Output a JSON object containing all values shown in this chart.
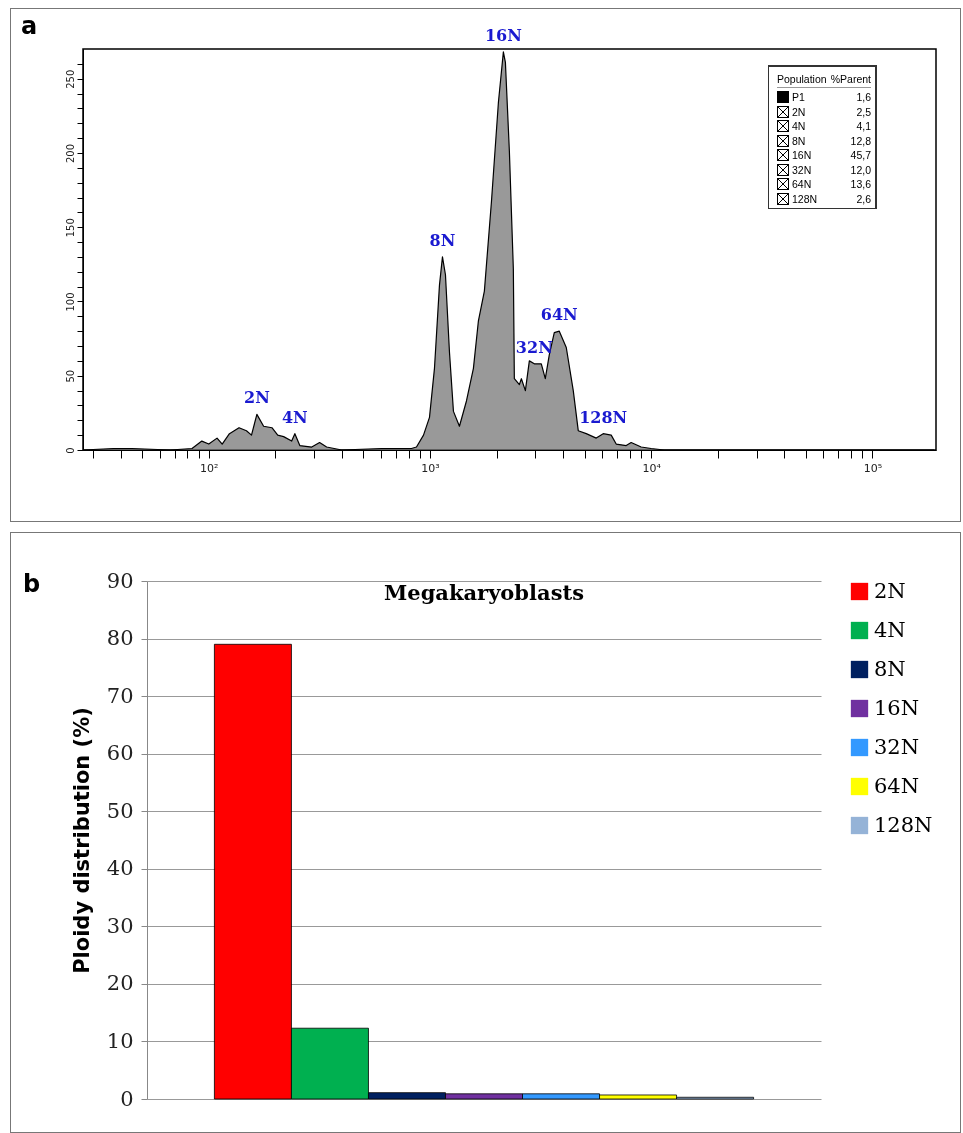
{
  "chart_data": [
    {
      "type": "area",
      "annotations": [
        "a",
        "Population",
        "%Parent",
        "P1",
        "1,6",
        "2N",
        "2,5",
        "4N",
        "4,1",
        "8N",
        "12,8",
        "16N",
        "45,7",
        "32N",
        "12,0",
        "64N",
        "13,6",
        "128N",
        "2,6",
        {
          "text": "2N",
          "x": 165,
          "y": 24
        },
        {
          "text": "4N",
          "x": 245,
          "y": 11
        },
        {
          "text": "8N",
          "x": 1139,
          "y": 130
        },
        {
          "text": "16N",
          "x": 2147,
          "y": 268
        },
        {
          "text": "32N",
          "x": 2963,
          "y": 58
        },
        {
          "text": "64N",
          "x": 3843,
          "y": 80
        },
        {
          "text": "128N",
          "x": 6071,
          "y": 11
        }
      ],
      "log": "x",
      "xlim": [
        27,
        194000
      ],
      "ylim": [
        0,
        270
      ],
      "xticks": [
        {
          "value": 30,
          "label": null
        },
        {
          "value": 40,
          "label": null
        },
        {
          "value": 50,
          "label": null
        },
        {
          "value": 60,
          "label": null
        },
        {
          "value": 70,
          "label": null
        },
        {
          "value": 80,
          "label": null
        },
        {
          "value": 90,
          "label": null
        },
        {
          "value": 100,
          "label": "10²"
        },
        {
          "value": 200,
          "label": null
        },
        {
          "value": 300,
          "label": null
        },
        {
          "value": 400,
          "label": null
        },
        {
          "value": 500,
          "label": null
        },
        {
          "value": 600,
          "label": null
        },
        {
          "value": 700,
          "label": null
        },
        {
          "value": 800,
          "label": null
        },
        {
          "value": 900,
          "label": null
        },
        {
          "value": 1000,
          "label": "10³"
        },
        {
          "value": 2000,
          "label": null
        },
        {
          "value": 3000,
          "label": null
        },
        {
          "value": 4000,
          "label": null
        },
        {
          "value": 5000,
          "label": null
        },
        {
          "value": 6000,
          "label": null
        },
        {
          "value": 7000,
          "label": null
        },
        {
          "value": 8000,
          "label": null
        },
        {
          "value": 9000,
          "label": null
        },
        {
          "value": 10000,
          "label": "10⁴"
        },
        {
          "value": 20000,
          "label": null
        },
        {
          "value": 30000,
          "label": null
        },
        {
          "value": 40000,
          "label": null
        },
        {
          "value": 50000,
          "label": null
        },
        {
          "value": 60000,
          "label": null
        },
        {
          "value": 70000,
          "label": null
        },
        {
          "value": 80000,
          "label": null
        },
        {
          "value": 90000,
          "label": null
        },
        {
          "value": 100000,
          "label": "10⁵"
        }
      ],
      "yticks": [
        0,
        {
          "value": 10,
          "label": null
        },
        {
          "value": 20,
          "label": null
        },
        {
          "value": 30,
          "label": null
        },
        {
          "value": 40,
          "label": null
        },
        50,
        {
          "value": 60,
          "label": null
        },
        {
          "value": 70,
          "label": null
        },
        {
          "value": 80,
          "label": null
        },
        {
          "value": 90,
          "label": null
        },
        100,
        {
          "value": 110,
          "label": null
        },
        {
          "value": 120,
          "label": null
        },
        {
          "value": 130,
          "label": null
        },
        {
          "value": 140,
          "label": null
        },
        150,
        {
          "value": 160,
          "label": null
        },
        {
          "value": 170,
          "label": null
        },
        {
          "value": 180,
          "label": null
        },
        {
          "value": 190,
          "label": null
        },
        200,
        {
          "value": 210,
          "label": null
        },
        {
          "value": 220,
          "label": null
        },
        {
          "value": 230,
          "label": null
        },
        {
          "value": 240,
          "label": null
        },
        250,
        {
          "value": 260,
          "label": null
        }
      ],
      "x": [
        27,
        37,
        45,
        67,
        84,
        93,
        100,
        109,
        115,
        124,
        137,
        148,
        156,
        165,
        177,
        193,
        205,
        218,
        237,
        245,
        258,
        292,
        317,
        341,
        399,
        604,
        825,
        869,
        935,
        995,
        1048,
        1104,
        1139,
        1175,
        1225,
        1277,
        1359,
        1462,
        1572,
        1656,
        1762,
        1896,
        2039,
        2147,
        2193,
        2286,
        2382,
        2407,
        2536,
        2590,
        2700,
        2814,
        2963,
        3187,
        3322,
        3463,
        3648,
        3843,
        4133,
        4445,
        4682,
        5089,
        5646,
        6071,
        6598,
        6950,
        7713,
        8121,
        9013,
        10000,
        11450,
        12310,
        190000
      ],
      "series": [
        {
          "color": "#6e6e6e",
          "values": [
            0,
            1,
            1,
            0,
            1,
            6,
            4,
            8,
            4,
            11,
            15,
            13,
            10,
            24,
            16,
            15,
            10,
            9,
            6,
            11,
            3,
            2,
            5,
            2,
            0,
            1,
            1,
            2,
            10,
            22,
            55,
            111,
            130,
            118,
            66,
            26,
            16,
            33,
            55,
            87,
            107,
            167,
            234,
            268,
            261,
            201,
            122,
            48,
            44,
            48,
            40,
            60,
            58,
            58,
            48,
            64,
            79,
            80,
            69,
            40,
            13,
            11,
            8,
            11,
            10,
            4,
            3,
            5,
            2,
            1,
            0,
            0,
            0
          ]
        }
      ]
    },
    {
      "type": "bar",
      "title": "Megakaryoblasts",
      "ylabel": "Ploidy distribution (%)",
      "annotations": [
        "b"
      ],
      "categories": [
        null
      ],
      "ylim": [
        0,
        90
      ],
      "yticks": [
        0,
        10,
        20,
        30,
        40,
        50,
        60,
        70,
        80,
        90
      ],
      "grid": "y",
      "legend": "right",
      "series": [
        {
          "name": "2N",
          "color": "#ff0000",
          "values": [
            79
          ]
        },
        {
          "name": "4N",
          "color": "#00b050",
          "values": [
            12.3
          ]
        },
        {
          "name": "8N",
          "color": "#002060",
          "values": [
            1.1
          ]
        },
        {
          "name": "16N",
          "color": "#7030a0",
          "values": [
            0.9
          ]
        },
        {
          "name": "32N",
          "color": "#3399ff",
          "values": [
            0.9
          ]
        },
        {
          "name": "64N",
          "color": "#ffff00",
          "values": [
            0.7
          ]
        },
        {
          "name": "128N",
          "color": "#95b3d7",
          "values": [
            0.3
          ]
        }
      ]
    }
  ]
}
